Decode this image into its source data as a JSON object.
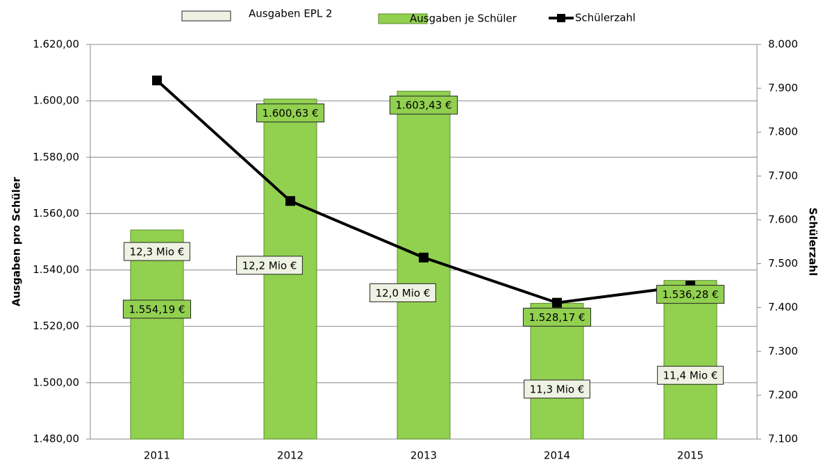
{
  "chart_data": {
    "type": "bar",
    "categories": [
      "2011",
      "2012",
      "2013",
      "2014",
      "2015"
    ],
    "series": [
      {
        "name": "Ausgaben EPL 2",
        "color": "#eef2e2",
        "values": [
          12.3,
          12.2,
          12.0,
          11.3,
          11.4
        ],
        "value_labels": [
          "12,3 Mio €",
          "12,2 Mio €",
          "12,0 Mio €",
          "11,3 Mio €",
          "11,4 Mio €"
        ]
      },
      {
        "name": "Ausgaben je Schüler",
        "color": "#92d050",
        "values": [
          1554.19,
          1600.63,
          1603.43,
          1528.17,
          1536.28
        ],
        "value_labels": [
          "1.554,19 €",
          "1.600,63 €",
          "1.603,43 €",
          "1.528,17 €",
          "1.536,28 €"
        ]
      },
      {
        "name": "Schülerzahl",
        "color": "#000000",
        "axis": "y2",
        "type": "line",
        "values": [
          7918,
          7643,
          7514,
          7411,
          7450
        ]
      }
    ],
    "ylabel": "Ausgaben pro Schüler",
    "y2label": "Schülerzahl",
    "ylim": [
      1480,
      1620
    ],
    "yticks": [
      {
        "value": 1480,
        "label": "1.480,00"
      },
      {
        "value": 1500,
        "label": "1.500,00"
      },
      {
        "value": 1520,
        "label": "1.520,00"
      },
      {
        "value": 1540,
        "label": "1.540,00"
      },
      {
        "value": 1560,
        "label": "1.560,00"
      },
      {
        "value": 1580,
        "label": "1.580,00"
      },
      {
        "value": 1600,
        "label": "1.600,00"
      },
      {
        "value": 1620,
        "label": "1.620,00"
      }
    ],
    "y2lim": [
      7100,
      8000
    ],
    "y2ticks": [
      {
        "value": 7100,
        "label": "7.100"
      },
      {
        "value": 7200,
        "label": "7.200"
      },
      {
        "value": 7300,
        "label": "7.300"
      },
      {
        "value": 7400,
        "label": "7.400"
      },
      {
        "value": 7500,
        "label": "7.500"
      },
      {
        "value": 7600,
        "label": "7.600"
      },
      {
        "value": 7700,
        "label": "7.700"
      },
      {
        "value": 7800,
        "label": "7.800"
      },
      {
        "value": 7900,
        "label": "7.900"
      },
      {
        "value": 8000,
        "label": "8.000"
      }
    ],
    "grid": true,
    "legend": "top"
  }
}
